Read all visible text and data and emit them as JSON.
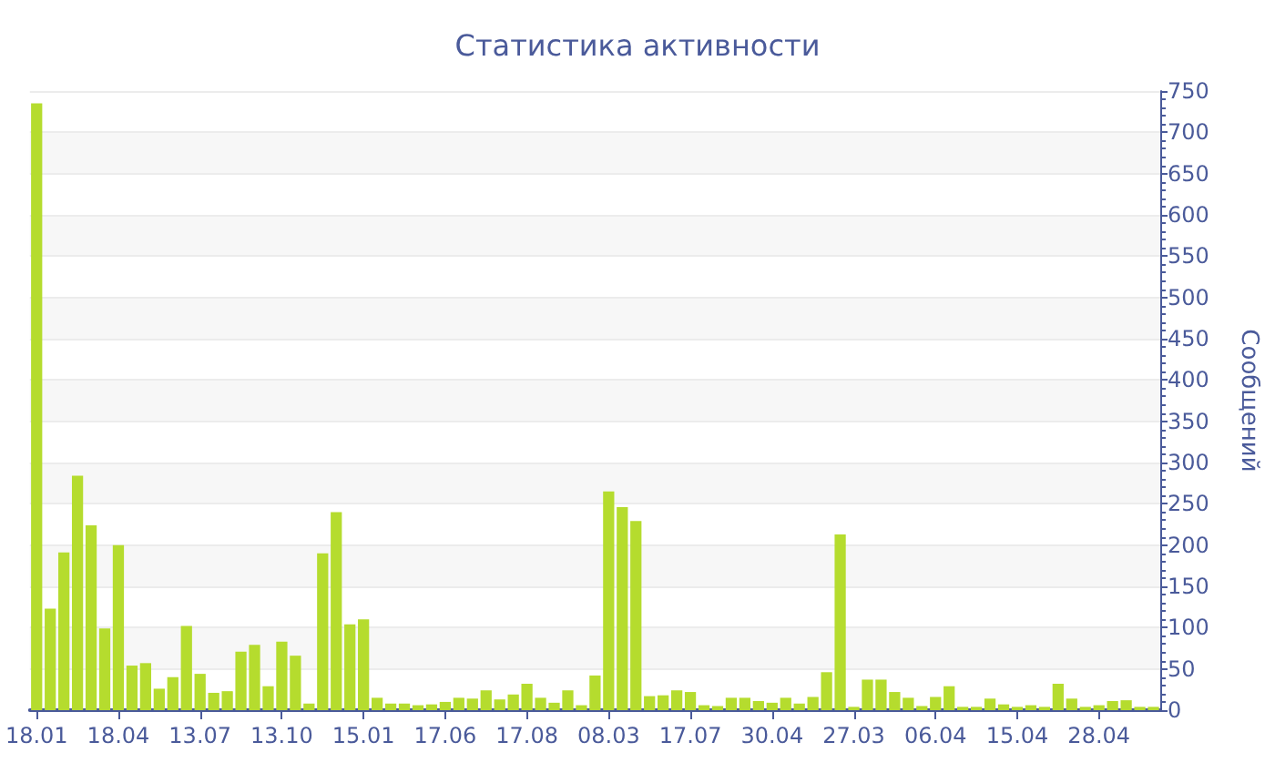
{
  "chart_data": {
    "type": "bar",
    "title": "Статистика активности",
    "ylabel": "Сообщений",
    "categories": [
      "18.01",
      null,
      null,
      null,
      null,
      null,
      "18.04",
      null,
      null,
      null,
      null,
      null,
      "13.07",
      null,
      null,
      null,
      null,
      null,
      "13.10",
      null,
      null,
      null,
      null,
      null,
      "15.01",
      null,
      null,
      null,
      null,
      null,
      "17.06",
      null,
      null,
      null,
      null,
      null,
      "17.08",
      null,
      null,
      null,
      null,
      null,
      "08.03",
      null,
      null,
      null,
      null,
      null,
      "17.07",
      null,
      null,
      null,
      null,
      null,
      "30.04",
      null,
      null,
      null,
      null,
      null,
      "27.03",
      null,
      null,
      null,
      null,
      null,
      "06.04",
      null,
      null,
      null,
      null,
      null,
      "15.04",
      null,
      null,
      null,
      null,
      null,
      "28.04",
      null,
      null,
      null,
      null
    ],
    "values": [
      735,
      123,
      191,
      284,
      224,
      99,
      200,
      54,
      57,
      26,
      40,
      102,
      44,
      21,
      23,
      71,
      79,
      29,
      83,
      66,
      8,
      190,
      240,
      104,
      110,
      15,
      8,
      8,
      6,
      7,
      10,
      15,
      14,
      24,
      13,
      19,
      32,
      15,
      9,
      24,
      6,
      42,
      265,
      246,
      229,
      17,
      18,
      24,
      22,
      6,
      5,
      15,
      15,
      11,
      9,
      15,
      8,
      16,
      46,
      213,
      4,
      37,
      37,
      22,
      15,
      5,
      16,
      29,
      4,
      4,
      14,
      7,
      4,
      6,
      4,
      32,
      14,
      4,
      6,
      11,
      12,
      4,
      4
    ],
    "color": "#b5dc2e",
    "ylim": [
      0,
      750
    ],
    "yticks": [
      0,
      50,
      100,
      150,
      200,
      250,
      300,
      350,
      400,
      450,
      500,
      550,
      600,
      650,
      700,
      750
    ],
    "grid": "y"
  }
}
